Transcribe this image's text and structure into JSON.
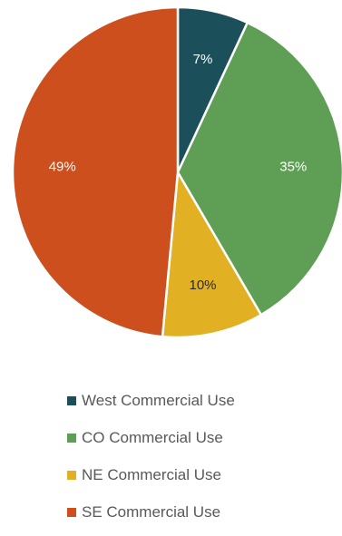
{
  "chart_data": {
    "type": "pie",
    "title": "",
    "categories": [
      "West Commercial Use",
      "CO Commercial Use",
      "NE Commercial Use",
      "SE Commercial Use"
    ],
    "values": [
      7,
      35,
      10,
      49
    ],
    "data_labels": [
      "7%",
      "35%",
      "10%",
      "49%"
    ],
    "colors": [
      "#1b4f5a",
      "#5f9e55",
      "#e1b023",
      "#cc4f1d"
    ],
    "legend_position": "bottom"
  }
}
